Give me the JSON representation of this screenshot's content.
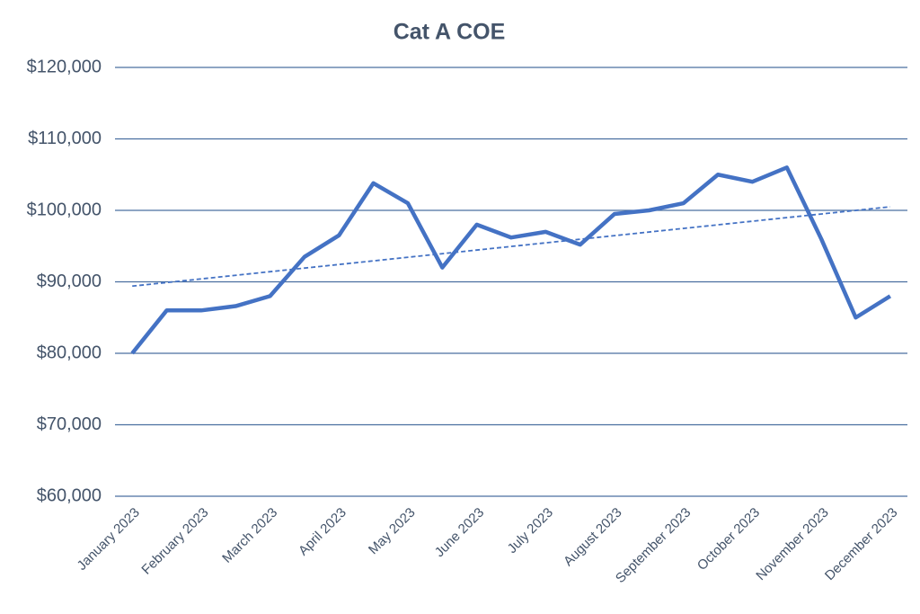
{
  "chart_data": {
    "type": "line",
    "title": "Cat A COE",
    "categories": [
      "January 2023",
      null,
      "February 2023",
      null,
      "March 2023",
      null,
      "April 2023",
      null,
      "May 2023",
      null,
      "June 2023",
      null,
      "July 2023",
      null,
      "August 2023",
      null,
      "September 2023",
      null,
      "October 2023",
      null,
      "November 2023",
      null,
      "December 2023"
    ],
    "series": [
      {
        "color": "#4472c4",
        "values": [
          80000,
          86000,
          86000,
          86600,
          88000,
          93500,
          96500,
          103800,
          101000,
          92000,
          98000,
          96200,
          97000,
          95200,
          99500,
          100000,
          101000,
          105000,
          104000,
          106000,
          96000,
          85000,
          88000
        ]
      }
    ],
    "trendline": {
      "values": [
        89400,
        100500
      ],
      "style": "dashed",
      "color": "#4472c4"
    },
    "ylim": [
      60000,
      120000
    ],
    "yticks": [
      {
        "value": 60000,
        "label": "$60,000"
      },
      {
        "value": 70000,
        "label": "$70,000"
      },
      {
        "value": 80000,
        "label": "$80,000"
      },
      {
        "value": 90000,
        "label": "$90,000"
      },
      {
        "value": 100000,
        "label": "$100,000"
      },
      {
        "value": 110000,
        "label": "$110,000"
      },
      {
        "value": 120000,
        "label": "$120,000"
      }
    ],
    "grid": true,
    "grid_color": "#4a6fa0"
  }
}
